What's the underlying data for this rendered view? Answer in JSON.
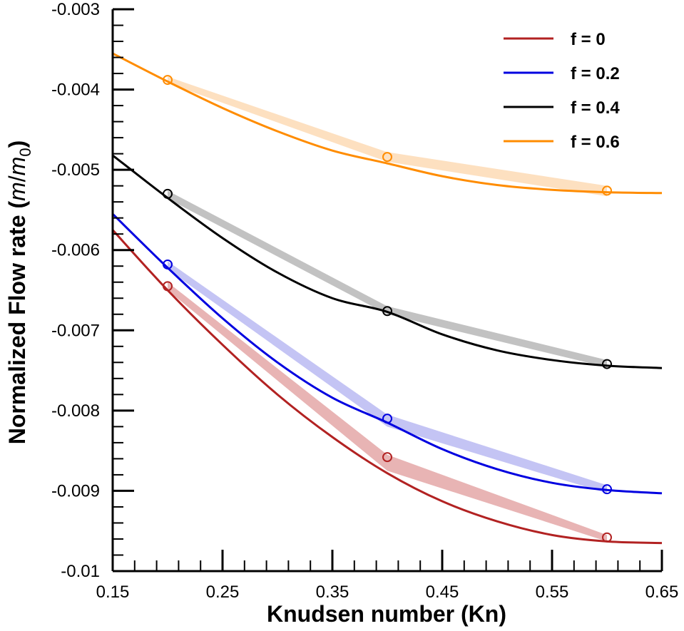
{
  "chart_data": {
    "type": "line",
    "xlabel": "Knudsen number (Kn)",
    "ylabel": "Normalized Flow rate (m/m0)",
    "ylabel_parts": {
      "main": "Normalized Flow rate (",
      "italic_m": "m",
      "slash": "/",
      "italic_m0": "m",
      "sub0": "0",
      "close": ")"
    },
    "xlim": [
      0.15,
      0.65
    ],
    "ylim": [
      -0.01,
      -0.003
    ],
    "x_ticks": [
      0.15,
      0.25,
      0.35,
      0.45,
      0.55,
      0.65
    ],
    "x_tick_labels": [
      "0.15",
      "0.25",
      "0.35",
      "0.45",
      "0.55",
      "0.65"
    ],
    "y_ticks": [
      -0.01,
      -0.009,
      -0.008,
      -0.007,
      -0.006,
      -0.005,
      -0.004,
      -0.003
    ],
    "y_tick_labels": [
      "-0.01",
      "-0.009",
      "-0.008",
      "-0.007",
      "-0.006",
      "-0.005",
      "-0.004",
      "-0.003"
    ],
    "legend_position": "top-right",
    "series": [
      {
        "name": "f = 0",
        "color": "#b22222",
        "band_color": "#e8b4b4",
        "curve_x": [
          0.15,
          0.2,
          0.25,
          0.3,
          0.35,
          0.4,
          0.45,
          0.5,
          0.55,
          0.6,
          0.65
        ],
        "curve_y": [
          -0.00575,
          -0.0065,
          -0.00718,
          -0.0078,
          -0.00833,
          -0.00878,
          -0.00913,
          -0.00938,
          -0.00955,
          -0.00963,
          -0.00965
        ],
        "markers_x": [
          0.2,
          0.4,
          0.6
        ],
        "markers_y": [
          -0.00645,
          -0.00858,
          -0.00958
        ],
        "band_x": [
          0.2,
          0.4,
          0.6
        ],
        "band_upper": [
          -0.0064,
          -0.00855,
          -0.00955
        ],
        "band_lower": [
          -0.0065,
          -0.00875,
          -0.00963
        ]
      },
      {
        "name": "f = 0.2",
        "color": "#0000e0",
        "band_color": "#c4c4f4",
        "curve_x": [
          0.15,
          0.2,
          0.25,
          0.3,
          0.35,
          0.4,
          0.45,
          0.5,
          0.55,
          0.6,
          0.65
        ],
        "curve_y": [
          -0.00555,
          -0.00622,
          -0.00685,
          -0.0074,
          -0.00784,
          -0.00815,
          -0.00848,
          -0.00873,
          -0.0089,
          -0.00899,
          -0.00903
        ],
        "markers_x": [
          0.2,
          0.4,
          0.6
        ],
        "markers_y": [
          -0.00618,
          -0.0081,
          -0.00898
        ],
        "band_x": [
          0.2,
          0.4,
          0.6
        ],
        "band_upper": [
          -0.00614,
          -0.00805,
          -0.00893
        ],
        "band_lower": [
          -0.00624,
          -0.0082,
          -0.00903
        ]
      },
      {
        "name": "f = 0.4",
        "color": "#000000",
        "band_color": "#c2c2c2",
        "curve_x": [
          0.15,
          0.2,
          0.25,
          0.3,
          0.35,
          0.4,
          0.45,
          0.5,
          0.55,
          0.6,
          0.65
        ],
        "curve_y": [
          -0.00482,
          -0.00535,
          -0.00585,
          -0.00628,
          -0.0066,
          -0.00677,
          -0.00705,
          -0.00725,
          -0.00737,
          -0.00744,
          -0.00747
        ],
        "markers_x": [
          0.2,
          0.4,
          0.6
        ],
        "markers_y": [
          -0.0053,
          -0.00676,
          -0.00742
        ],
        "band_x": [
          0.2,
          0.4,
          0.6
        ],
        "band_upper": [
          -0.00526,
          -0.0067,
          -0.00737
        ],
        "band_lower": [
          -0.00536,
          -0.0068,
          -0.00746
        ]
      },
      {
        "name": "f = 0.6",
        "color": "#ff8c00",
        "band_color": "#fde0c0",
        "curve_x": [
          0.15,
          0.2,
          0.25,
          0.3,
          0.35,
          0.4,
          0.45,
          0.5,
          0.55,
          0.6,
          0.65
        ],
        "curve_y": [
          -0.00355,
          -0.0039,
          -0.00423,
          -0.00452,
          -0.00476,
          -0.00492,
          -0.00508,
          -0.00519,
          -0.00525,
          -0.00528,
          -0.00529
        ],
        "markers_x": [
          0.2,
          0.4,
          0.6
        ],
        "markers_y": [
          -0.00388,
          -0.00484,
          -0.00526
        ],
        "band_x": [
          0.2,
          0.4,
          0.6
        ],
        "band_upper": [
          -0.00384,
          -0.00478,
          -0.0052
        ],
        "band_lower": [
          -0.00392,
          -0.0049,
          -0.00533
        ]
      }
    ]
  }
}
